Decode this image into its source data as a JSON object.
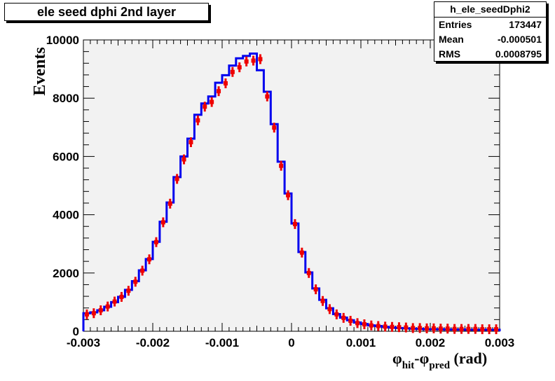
{
  "chart_data": {
    "type": "histogram",
    "title": "ele seed dphi 2nd layer",
    "ylabel": "Events",
    "xlabel": {
      "main": "φ",
      "sub1": "hit",
      "mid": "-φ",
      "sub2": "pred",
      "unit": " (rad)"
    },
    "xlim": [
      -0.003,
      0.003
    ],
    "ylim": [
      0,
      10000
    ],
    "x_ticks": [
      "-0.003",
      "-0.002",
      "-0.001",
      "0",
      "0.001",
      "0.002",
      "0.003"
    ],
    "y_ticks": [
      "0",
      "2000",
      "4000",
      "6000",
      "8000",
      "10000"
    ],
    "bin_width": 0.0001,
    "bin_edges_start": -0.003,
    "series": [
      {
        "style": "line",
        "color": "#0000ee",
        "values": [
          620,
          650,
          720,
          840,
          1000,
          1180,
          1420,
          1720,
          2090,
          2480,
          3070,
          3760,
          4420,
          5290,
          6000,
          6610,
          7430,
          7820,
          8060,
          8530,
          8790,
          9120,
          9370,
          9450,
          9530,
          8960,
          8220,
          7110,
          5820,
          4730,
          3700,
          2720,
          2020,
          1470,
          1080,
          790,
          590,
          470,
          380,
          300,
          250,
          200,
          180,
          150,
          130,
          110,
          100,
          90,
          80,
          70,
          70,
          70,
          60,
          60,
          60,
          50,
          50,
          50,
          50,
          50
        ]
      },
      {
        "style": "points",
        "color": "#ee0000",
        "values": [
          580,
          620,
          720,
          850,
          1020,
          1180,
          1390,
          1700,
          2080,
          2470,
          3060,
          3740,
          4380,
          5230,
          5900,
          6490,
          7240,
          7710,
          7870,
          8240,
          8510,
          8900,
          9060,
          9260,
          9290,
          9340,
          8060,
          6990,
          5680,
          4670,
          3680,
          2700,
          2000,
          1440,
          1040,
          760,
          580,
          460,
          360,
          280,
          240,
          200,
          180,
          160,
          150,
          140,
          130,
          110,
          110,
          100,
          100,
          90,
          90,
          80,
          80,
          80,
          80,
          70,
          70,
          70
        ]
      }
    ],
    "stats": {
      "name": "h_ele_seedDphi2",
      "entries_label": "Entries",
      "entries": "173447",
      "mean_label": "Mean",
      "mean": "-0.000501",
      "rms_label": "RMS",
      "rms": "0.0008795"
    }
  },
  "colors": {
    "frame_fill": "#f2f2f2",
    "line": "#0000ee",
    "points": "#ee0000"
  }
}
